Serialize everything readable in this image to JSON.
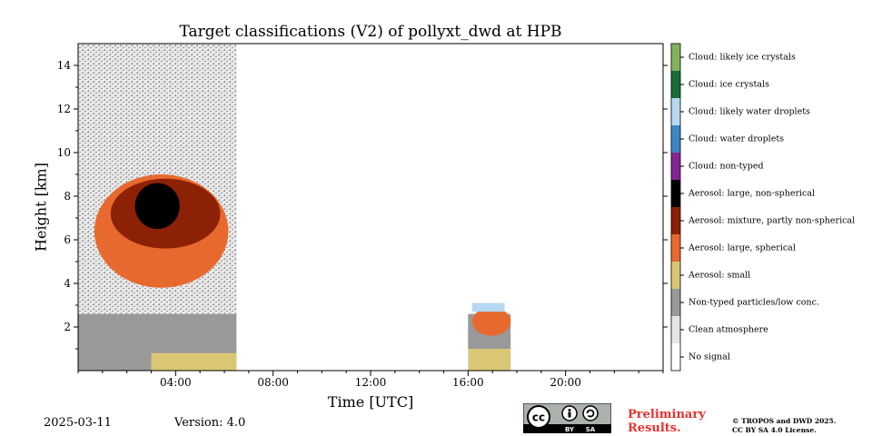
{
  "chart_data": {
    "type": "heatmap",
    "title": "Target classifications (V2) of pollyxt_dwd at HPB",
    "xlabel": "Time [UTC]",
    "ylabel": "Height [km]",
    "xlim": [
      "00:00",
      "24:00"
    ],
    "ylim": [
      0,
      15
    ],
    "x_ticks": [
      "04:00",
      "08:00",
      "12:00",
      "16:00",
      "20:00"
    ],
    "y_ticks": [
      2,
      4,
      6,
      8,
      10,
      12,
      14
    ],
    "legend_placement": "right colorbar",
    "classes": [
      {
        "label": "No signal",
        "color": "#ffffff"
      },
      {
        "label": "Clean atmosphere",
        "color": "#e6e6e6"
      },
      {
        "label": "Non-typed particles/low conc.",
        "color": "#999999"
      },
      {
        "label": "Aerosol: small",
        "color": "#d9c776"
      },
      {
        "label": "Aerosol: large, spherical",
        "color": "#e8692e"
      },
      {
        "label": "Aerosol: mixture, partly non-spherical",
        "color": "#8c2106"
      },
      {
        "label": "Aerosol: large, non-spherical",
        "color": "#000000"
      },
      {
        "label": "Cloud: non-typed",
        "color": "#842592"
      },
      {
        "label": "Cloud: water droplets",
        "color": "#3d86c6"
      },
      {
        "label": "Cloud: likely water droplets",
        "color": "#b5d9f2"
      },
      {
        "label": "Cloud: ice crystals",
        "color": "#176e38"
      },
      {
        "label": "Cloud: likely ice crystals",
        "color": "#83b25f"
      }
    ],
    "regions": [
      {
        "class": "Non-typed particles/low conc.",
        "time": [
          "00:00",
          "06:30"
        ],
        "height": [
          0,
          2.6
        ]
      },
      {
        "class": "Clean atmosphere",
        "time": [
          "00:00",
          "06:30"
        ],
        "height": [
          2.6,
          15
        ]
      },
      {
        "class": "Aerosol: small",
        "time": [
          "03:00",
          "06:30"
        ],
        "height": [
          0,
          0.8
        ]
      },
      {
        "class": "Aerosol: large, spherical",
        "time": [
          "00:40",
          "06:10"
        ],
        "height": [
          3.8,
          9.0
        ]
      },
      {
        "class": "Aerosol: mixture, partly non-spherical",
        "time": [
          "01:20",
          "05:50"
        ],
        "height": [
          5.6,
          8.8
        ]
      },
      {
        "class": "Aerosol: large, non-spherical",
        "time": [
          "02:20",
          "04:10"
        ],
        "height": [
          6.5,
          8.6
        ]
      },
      {
        "class": "No signal",
        "time": [
          "06:30",
          "16:00"
        ],
        "height": [
          0,
          15
        ]
      },
      {
        "class": "Aerosol: small",
        "time": [
          "16:00",
          "17:45"
        ],
        "height": [
          0,
          2.5
        ]
      },
      {
        "class": "Non-typed particles/low conc.",
        "time": [
          "16:00",
          "17:45"
        ],
        "height": [
          1.0,
          2.6
        ]
      },
      {
        "class": "Aerosol: large, spherical",
        "time": [
          "16:10",
          "17:45"
        ],
        "height": [
          1.6,
          2.9
        ]
      },
      {
        "class": "Cloud: likely water droplets",
        "time": [
          "16:10",
          "17:30"
        ],
        "height": [
          2.7,
          3.1
        ]
      },
      {
        "class": "No signal",
        "time": [
          "17:45",
          "24:00"
        ],
        "height": [
          0,
          15
        ]
      }
    ]
  },
  "footer": {
    "date": "2025-03-11",
    "version": "Version: 4.0",
    "preliminary_line1": "Preliminary",
    "preliminary_line2": "Results.",
    "copyright_line1": "© TROPOS and DWD 2025.",
    "copyright_line2": "CC BY SA 4.0 License.",
    "cc_logo_text": "cc",
    "cc_by": "BY",
    "cc_sa": "SA"
  }
}
